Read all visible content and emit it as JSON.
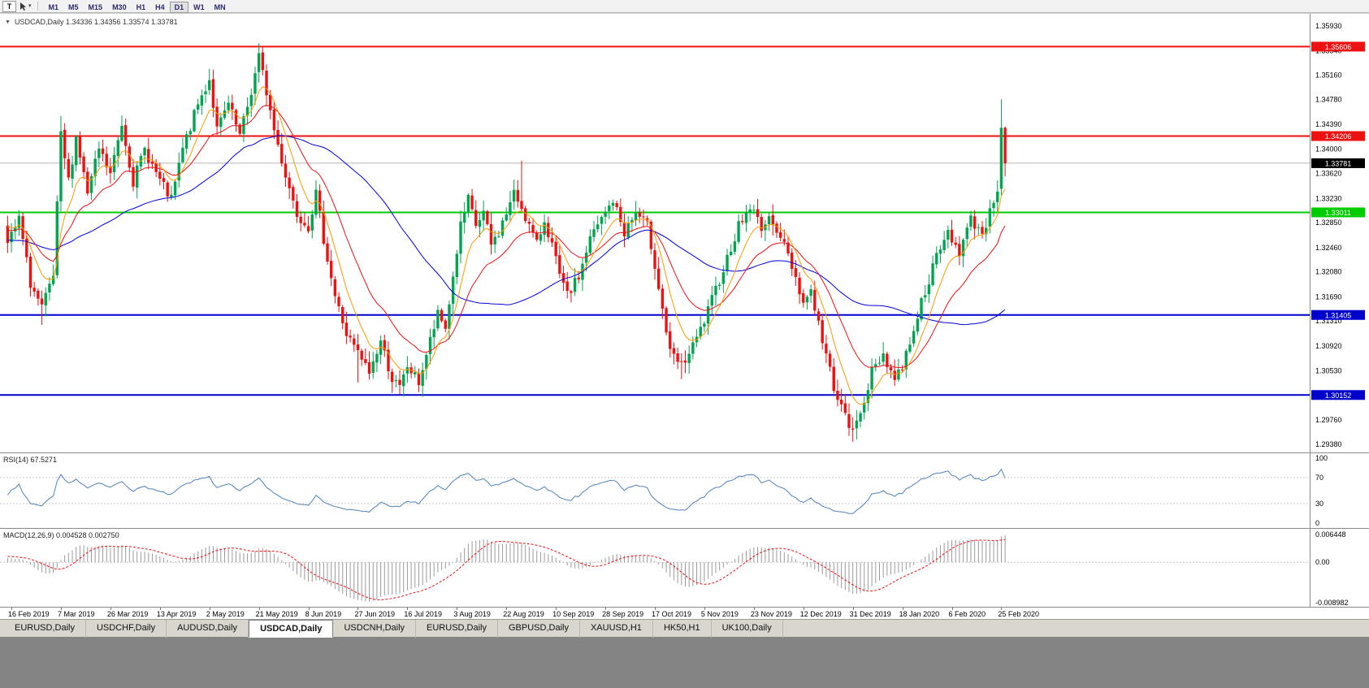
{
  "toolbar": {
    "chart_type_button": "T",
    "cursor_dropdown_icon": "▾",
    "timeframes": [
      "M1",
      "M5",
      "M15",
      "M30",
      "H1",
      "H4",
      "D1",
      "W1",
      "MN"
    ],
    "active_timeframe": "D1"
  },
  "chart": {
    "legend_arrow": "▼",
    "legend_text": "USDCAD,Daily 1.34336 1.34356 1.33574 1.33781",
    "price_axis_labels": [
      "1.35930",
      "1.35540",
      "1.35160",
      "1.34780",
      "1.34390",
      "1.34000",
      "1.33620",
      "1.33230",
      "1.32850",
      "1.32460",
      "1.32080",
      "1.31690",
      "1.31310",
      "1.30920",
      "1.30530",
      "1.30150",
      "1.29760",
      "1.29380"
    ],
    "current_price_tag": "1.33781",
    "bid_price": 1.33781
  },
  "rsi_panel": {
    "label": "RSI(14) 67.5271",
    "scale_labels": [
      "100",
      "70",
      "30",
      "0"
    ],
    "level_lines": [
      70,
      30
    ]
  },
  "macd_panel": {
    "label": "MACD(12,26,9) 0.004528 0.002750",
    "scale_max": "0.006448",
    "scale_zero": "0.00",
    "scale_min": "-0.008982"
  },
  "date_axis": [
    "16 Feb 2019",
    "7 Mar 2019",
    "26 Mar 2019",
    "13 Apr 2019",
    "2 May 2019",
    "21 May 2019",
    "8 Jun 2019",
    "27 Jun 2019",
    "16 Jul 2019",
    "3 Aug 2019",
    "22 Aug 2019",
    "10 Sep 2019",
    "28 Sep 2019",
    "17 Oct 2019",
    "5 Nov 2019",
    "23 Nov 2019",
    "12 Dec 2019",
    "31 Dec 2019",
    "18 Jan 2020",
    "6 Feb 2020",
    "25 Feb 2020"
  ],
  "tabs": {
    "items": [
      "EURUSD,Daily",
      "USDCHF,Daily",
      "AUDUSD,Daily",
      "USDCAD,Daily",
      "USDCNH,Daily",
      "EURUSD,Daily",
      "GBPUSD,Daily",
      "XAUUSD,H1",
      "HK50,H1",
      "UK100,Daily"
    ],
    "active_index": 3
  },
  "colors": {
    "bull": "#00a550",
    "bear": "#ee1111",
    "ma_fast": "#ff9900",
    "ma_mid": "#ee1111",
    "ma_slow": "#0000dd",
    "rsi_line": "#4f81bd",
    "macd_hist": "#9a9a9a",
    "macd_signal": "#ee1111",
    "bid_line": "#b4b4b4",
    "tag_current_bg": "#000000",
    "grid": "#c8c8c8"
  },
  "chart_data": {
    "type": "candlestick",
    "symbol": "USDCAD",
    "timeframe": "Daily",
    "current_bar": {
      "open": 1.34336,
      "high": 1.34356,
      "low": 1.33574,
      "close": 1.33781
    },
    "price_max": 1.3612,
    "price_min": 1.2924,
    "candle_count": 263,
    "total_slots": 344,
    "seed": 7,
    "horizontal_lines": [
      {
        "price": 1.35606,
        "label": "1.35606",
        "color": "#ee1111"
      },
      {
        "price": 1.34206,
        "label": "1.34206",
        "color": "#ee1111"
      },
      {
        "price": 1.33011,
        "label": "1.33011",
        "color": "#00cc00"
      },
      {
        "price": 1.31405,
        "label": "1.31405",
        "color": "#0000cc"
      },
      {
        "price": 1.30152,
        "label": "1.30152",
        "color": "#0000cc"
      }
    ],
    "moving_averages": [
      {
        "period": 8,
        "type": "ema",
        "color": "#ff9900"
      },
      {
        "period": 20,
        "type": "ema",
        "color": "#ee1111"
      },
      {
        "period": 50,
        "type": "sma",
        "color": "#0000dd"
      }
    ],
    "rsi": {
      "period": 14,
      "last_value": 67.5271
    },
    "macd": {
      "fast": 12,
      "slow": 26,
      "signal": 9,
      "last_macd": 0.004528,
      "last_signal": 0.00275,
      "scale_max": 0.006448,
      "scale_min": -0.008982
    },
    "price_waypoints": [
      [
        0,
        1.325
      ],
      [
        3,
        1.329
      ],
      [
        6,
        1.319
      ],
      [
        9,
        1.315
      ],
      [
        12,
        1.32
      ],
      [
        14,
        1.342
      ],
      [
        16,
        1.335
      ],
      [
        18,
        1.342
      ],
      [
        21,
        1.333
      ],
      [
        24,
        1.34
      ],
      [
        27,
        1.336
      ],
      [
        30,
        1.344
      ],
      [
        33,
        1.335
      ],
      [
        36,
        1.34
      ],
      [
        40,
        1.335
      ],
      [
        43,
        1.332
      ],
      [
        46,
        1.34
      ],
      [
        50,
        1.347
      ],
      [
        53,
        1.351
      ],
      [
        55,
        1.343
      ],
      [
        58,
        1.347
      ],
      [
        61,
        1.342
      ],
      [
        64,
        1.349
      ],
      [
        66,
        1.3545
      ],
      [
        68,
        1.349
      ],
      [
        70,
        1.343
      ],
      [
        73,
        1.336
      ],
      [
        76,
        1.33
      ],
      [
        79,
        1.328
      ],
      [
        81,
        1.333
      ],
      [
        83,
        1.326
      ],
      [
        86,
        1.317
      ],
      [
        89,
        1.311
      ],
      [
        92,
        1.308
      ],
      [
        95,
        1.305
      ],
      [
        98,
        1.31
      ],
      [
        101,
        1.304
      ],
      [
        103,
        1.3025
      ],
      [
        105,
        1.306
      ],
      [
        108,
        1.3035
      ],
      [
        111,
        1.31
      ],
      [
        113,
        1.314
      ],
      [
        115,
        1.312
      ],
      [
        117,
        1.32
      ],
      [
        119,
        1.328
      ],
      [
        121,
        1.332
      ],
      [
        123,
        1.328
      ],
      [
        125,
        1.33
      ],
      [
        127,
        1.325
      ],
      [
        129,
        1.327
      ],
      [
        131,
        1.33
      ],
      [
        133,
        1.333
      ],
      [
        135,
        1.331
      ],
      [
        137,
        1.328
      ],
      [
        139,
        1.325
      ],
      [
        141,
        1.329
      ],
      [
        143,
        1.325
      ],
      [
        145,
        1.32
      ],
      [
        147,
        1.317
      ],
      [
        150,
        1.32
      ],
      [
        153,
        1.326
      ],
      [
        156,
        1.329
      ],
      [
        159,
        1.332
      ],
      [
        162,
        1.327
      ],
      [
        165,
        1.33
      ],
      [
        168,
        1.328
      ],
      [
        170,
        1.322
      ],
      [
        172,
        1.315
      ],
      [
        174,
        1.308
      ],
      [
        177,
        1.306
      ],
      [
        180,
        1.309
      ],
      [
        183,
        1.313
      ],
      [
        186,
        1.318
      ],
      [
        189,
        1.323
      ],
      [
        192,
        1.328
      ],
      [
        195,
        1.331
      ],
      [
        198,
        1.328
      ],
      [
        201,
        1.329
      ],
      [
        204,
        1.325
      ],
      [
        207,
        1.32
      ],
      [
        209,
        1.316
      ],
      [
        211,
        1.318
      ],
      [
        214,
        1.31
      ],
      [
        217,
        1.303
      ],
      [
        220,
        1.298
      ],
      [
        222,
        1.2955
      ],
      [
        224,
        1.299
      ],
      [
        227,
        1.305
      ],
      [
        230,
        1.308
      ],
      [
        233,
        1.304
      ],
      [
        235,
        1.306
      ],
      [
        238,
        1.312
      ],
      [
        241,
        1.318
      ],
      [
        244,
        1.323
      ],
      [
        247,
        1.327
      ],
      [
        250,
        1.324
      ],
      [
        253,
        1.329
      ],
      [
        256,
        1.327
      ],
      [
        258,
        1.33
      ],
      [
        260,
        1.334
      ],
      [
        261,
        1.3434
      ],
      [
        262,
        1.3378
      ]
    ],
    "spikes": [
      {
        "i": 9,
        "l": 1.3125
      },
      {
        "i": 14,
        "h": 1.3452
      },
      {
        "i": 66,
        "h": 1.3566
      },
      {
        "i": 92,
        "l": 1.3035
      },
      {
        "i": 103,
        "l": 1.3016
      },
      {
        "i": 135,
        "h": 1.3382
      },
      {
        "i": 177,
        "l": 1.304
      },
      {
        "i": 222,
        "l": 1.2942
      },
      {
        "i": 261,
        "h": 1.3478
      }
    ],
    "final_candles": [
      {
        "o": 1.3338,
        "h": 1.3478,
        "l": 1.3328,
        "c": 1.34336
      },
      {
        "o": 1.34336,
        "h": 1.34356,
        "l": 1.33574,
        "c": 1.33781
      }
    ]
  }
}
